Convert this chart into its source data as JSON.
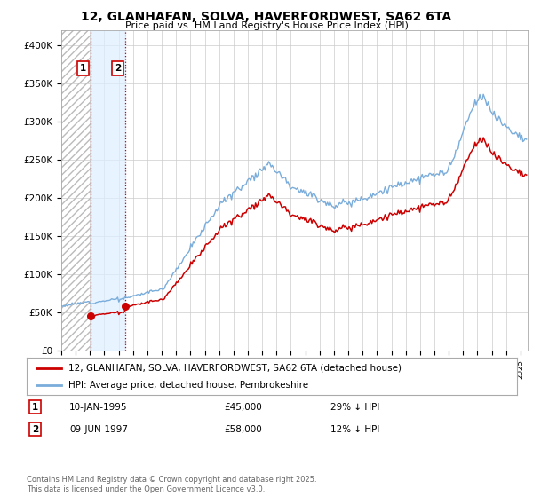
{
  "title": "12, GLANHAFAN, SOLVA, HAVERFORDWEST, SA62 6TA",
  "subtitle": "Price paid vs. HM Land Registry's House Price Index (HPI)",
  "ylim": [
    0,
    420000
  ],
  "yticks": [
    0,
    50000,
    100000,
    150000,
    200000,
    250000,
    300000,
    350000,
    400000
  ],
  "xlim_start": 1993.0,
  "xlim_end": 2025.5,
  "legend_line1": "12, GLANHAFAN, SOLVA, HAVERFORDWEST, SA62 6TA (detached house)",
  "legend_line2": "HPI: Average price, detached house, Pembrokeshire",
  "sale1_date": "10-JAN-1995",
  "sale1_price": "£45,000",
  "sale1_hpi": "29% ↓ HPI",
  "sale1_year": 1995.03,
  "sale1_value": 45000,
  "sale2_date": "09-JUN-1997",
  "sale2_price": "£58,000",
  "sale2_hpi": "12% ↓ HPI",
  "sale2_year": 1997.44,
  "sale2_value": 58000,
  "copyright_text": "Contains HM Land Registry data © Crown copyright and database right 2025.\nThis data is licensed under the Open Government Licence v3.0.",
  "house_color": "#cc0000",
  "hpi_color": "#7aaddb",
  "background_color": "#ffffff",
  "grid_color": "#cccccc",
  "shade_color": "#ddeeff"
}
